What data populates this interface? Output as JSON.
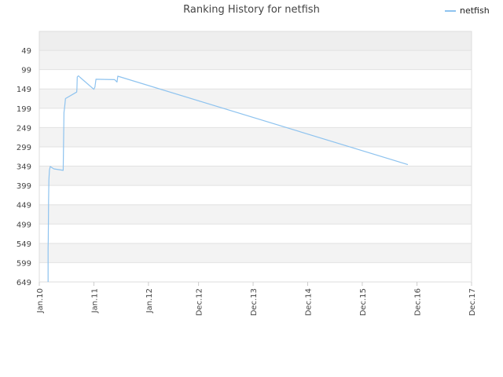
{
  "chart_data": {
    "type": "line",
    "title": "Ranking History for netfish",
    "xlabel": "",
    "ylabel": "",
    "y_inverted": true,
    "ylim": [
      0,
      649
    ],
    "y_ticks": [
      49,
      99,
      149,
      199,
      249,
      299,
      349,
      399,
      449,
      499,
      549,
      599,
      649
    ],
    "xlim": [
      "2010-01-01",
      "2017-12-01"
    ],
    "x_ticks": [
      {
        "date": "2010-01-01",
        "label": "Jan.10"
      },
      {
        "date": "2011-01-01",
        "label": "Jan.11"
      },
      {
        "date": "2012-01-01",
        "label": "Jan.12"
      },
      {
        "date": "2012-12-01",
        "label": "Dec.12"
      },
      {
        "date": "2013-12-01",
        "label": "Dec.13"
      },
      {
        "date": "2014-12-01",
        "label": "Dec.14"
      },
      {
        "date": "2015-12-01",
        "label": "Dec.15"
      },
      {
        "date": "2016-12-01",
        "label": "Dec.16"
      },
      {
        "date": "2017-12-01",
        "label": "Dec.17"
      }
    ],
    "grid": true,
    "legend_position": "top-right",
    "series": [
      {
        "name": "netfish",
        "color": "#8ec3ef",
        "points": [
          [
            "2010-03-01",
            649
          ],
          [
            "2010-03-01",
            560
          ],
          [
            "2010-03-02",
            540
          ],
          [
            "2010-03-04",
            440
          ],
          [
            "2010-03-06",
            385
          ],
          [
            "2010-03-10",
            360
          ],
          [
            "2010-03-15",
            350
          ],
          [
            "2010-04-08",
            356
          ],
          [
            "2010-06-10",
            360
          ],
          [
            "2010-06-12",
            300
          ],
          [
            "2010-06-15",
            210
          ],
          [
            "2010-06-20",
            195
          ],
          [
            "2010-06-25",
            174
          ],
          [
            "2010-09-08",
            157
          ],
          [
            "2010-09-10",
            148
          ],
          [
            "2010-09-12",
            118
          ],
          [
            "2010-09-20",
            115
          ],
          [
            "2010-10-01",
            119
          ],
          [
            "2011-01-01",
            150
          ],
          [
            "2011-01-08",
            144
          ],
          [
            "2011-01-15",
            124
          ],
          [
            "2011-05-20",
            125
          ],
          [
            "2011-06-05",
            131
          ],
          [
            "2011-06-10",
            116
          ],
          [
            "2016-10-01",
            345
          ]
        ]
      }
    ]
  }
}
